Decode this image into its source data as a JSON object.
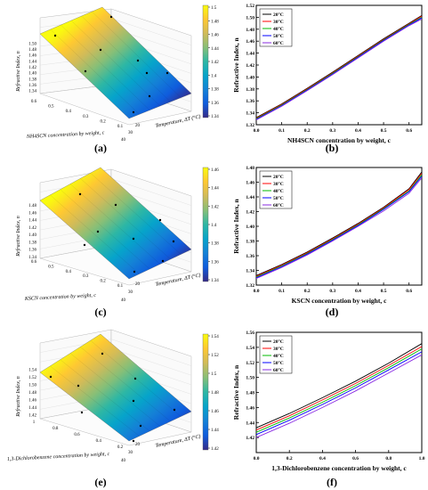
{
  "colors": {
    "series": [
      "#000000",
      "#ff0000",
      "#00bb00",
      "#0000ff",
      "#8a2be2"
    ],
    "colormap": [
      "#352a87",
      "#0f5cdd",
      "#1481d6",
      "#06a4ca",
      "#2eb7a4",
      "#87bf77",
      "#d1bb59",
      "#fec832",
      "#f9fb0e"
    ]
  },
  "chart_data": [
    {
      "panel": "(a)",
      "type": "surface3d",
      "xlabel": "NH4SCN concentration by weight, c",
      "ylabel": "Temperature, ΔT (°C)",
      "zlabel": "Refractive Index, n",
      "x_ticks": [
        "0.6",
        "0.5",
        "0.4",
        "0.3",
        "0.2",
        "0.1"
      ],
      "y_ticks": [
        "20",
        "30",
        "40"
      ],
      "z_ticks": [
        "1.34",
        "1.36",
        "1.38",
        "1.40",
        "1.42",
        "1.44",
        "1.46",
        "1.48",
        "1.50"
      ],
      "colorbar_ticks": [
        "1.5",
        "1.48",
        "1.46",
        "1.44",
        "1.42",
        "1.4",
        "1.38",
        "1.36",
        "1.34"
      ],
      "zlim": [
        1.33,
        1.51
      ]
    },
    {
      "panel": "(b)",
      "type": "line",
      "xlabel": "NH4SCN concentration by weight, c",
      "ylabel": "Refractive Index, n",
      "xlim": [
        0.0,
        0.65
      ],
      "ylim": [
        1.32,
        1.52
      ],
      "x_ticks": [
        "0.0",
        "0.1",
        "0.2",
        "0.3",
        "0.4",
        "0.5",
        "0.6"
      ],
      "y_ticks": [
        "1.32",
        "1.34",
        "1.36",
        "1.38",
        "1.40",
        "1.42",
        "1.44",
        "1.46",
        "1.48",
        "1.50",
        "1.52"
      ],
      "legend_position": "top-left",
      "x": [
        0.0,
        0.1,
        0.2,
        0.3,
        0.4,
        0.5,
        0.6,
        0.65
      ],
      "series": [
        {
          "name": "20°C",
          "values": [
            1.332,
            1.355,
            1.381,
            1.408,
            1.436,
            1.464,
            1.49,
            1.503
          ]
        },
        {
          "name": "30°C",
          "values": [
            1.331,
            1.354,
            1.38,
            1.407,
            1.435,
            1.463,
            1.489,
            1.502
          ]
        },
        {
          "name": "40°C",
          "values": [
            1.33,
            1.353,
            1.379,
            1.406,
            1.434,
            1.462,
            1.488,
            1.5
          ]
        },
        {
          "name": "50°C",
          "values": [
            1.329,
            1.352,
            1.378,
            1.405,
            1.433,
            1.461,
            1.487,
            1.499
          ]
        },
        {
          "name": "60°C",
          "values": [
            1.328,
            1.351,
            1.377,
            1.404,
            1.432,
            1.46,
            1.486,
            1.497
          ]
        }
      ]
    },
    {
      "panel": "(c)",
      "type": "surface3d",
      "xlabel": "KSCN concentration by weight, c",
      "ylabel": "Temperature, ΔT (°C)",
      "zlabel": "Refractive Index, n",
      "x_ticks": [
        "0.6",
        "0.5",
        "0.4",
        "0.3",
        "0.2",
        "0.1"
      ],
      "y_ticks": [
        "20",
        "30",
        "40"
      ],
      "z_ticks": [
        "1.34",
        "1.36",
        "1.38",
        "1.40",
        "1.42",
        "1.44",
        "1.46",
        "1.48"
      ],
      "colorbar_ticks": [
        "1.46",
        "1.44",
        "1.42",
        "1.4",
        "1.38",
        "1.36",
        "1.34"
      ],
      "zlim": [
        1.33,
        1.48
      ]
    },
    {
      "panel": "(d)",
      "type": "line",
      "xlabel": "KSCN concentration by weight, c",
      "ylabel": "Refractive Index, n",
      "xlim": [
        0.0,
        0.65
      ],
      "ylim": [
        1.32,
        1.48
      ],
      "x_ticks": [
        "0.0",
        "0.1",
        "0.2",
        "0.3",
        "0.4",
        "0.5",
        "0.6"
      ],
      "y_ticks": [
        "1.32",
        "1.34",
        "1.36",
        "1.38",
        "1.40",
        "1.42",
        "1.44",
        "1.46",
        "1.48"
      ],
      "legend_position": "top-left",
      "x": [
        0.0,
        0.1,
        0.2,
        0.3,
        0.4,
        0.5,
        0.6,
        0.65
      ],
      "series": [
        {
          "name": "20°C",
          "values": [
            1.333,
            1.348,
            1.365,
            1.384,
            1.404,
            1.426,
            1.451,
            1.474
          ]
        },
        {
          "name": "30°C",
          "values": [
            1.332,
            1.347,
            1.364,
            1.383,
            1.403,
            1.425,
            1.45,
            1.472
          ]
        },
        {
          "name": "40°C",
          "values": [
            1.331,
            1.346,
            1.363,
            1.382,
            1.402,
            1.424,
            1.448,
            1.47
          ]
        },
        {
          "name": "50°C",
          "values": [
            1.33,
            1.345,
            1.362,
            1.381,
            1.401,
            1.423,
            1.447,
            1.468
          ]
        },
        {
          "name": "60°C",
          "values": [
            1.329,
            1.344,
            1.361,
            1.38,
            1.4,
            1.421,
            1.445,
            1.466
          ]
        }
      ]
    },
    {
      "panel": "(e)",
      "type": "surface3d",
      "xlabel": "1,3-Dichlorobenzene concentration by weight, c",
      "ylabel": "Temperature, ΔT (°C)",
      "zlabel": "Refractive Index, n",
      "x_ticks": [
        "1",
        "0.8",
        "0.6",
        "0.4",
        "0.2"
      ],
      "y_ticks": [
        "20",
        "30",
        "40"
      ],
      "z_ticks": [
        "1.42",
        "1.44",
        "1.46",
        "1.48",
        "1.50",
        "1.52",
        "1.54"
      ],
      "colorbar_ticks": [
        "1.54",
        "1.52",
        "1.5",
        "1.48",
        "1.46",
        "1.44",
        "1.42"
      ],
      "zlim": [
        1.41,
        1.55
      ]
    },
    {
      "panel": "(f)",
      "type": "line",
      "xlabel": "1,3-Dichlorobenzene concentration by weight, c",
      "ylabel": "Refractive Index, n",
      "xlim": [
        0.0,
        1.0
      ],
      "ylim": [
        1.4,
        1.56
      ],
      "x_ticks": [
        "0.0",
        "0.2",
        "0.4",
        "0.6",
        "0.8",
        "1.0"
      ],
      "y_ticks": [
        "1.42",
        "1.44",
        "1.46",
        "1.48",
        "1.50",
        "1.52",
        "1.54",
        "1.56"
      ],
      "legend_position": "top-left",
      "x": [
        0.0,
        0.2,
        0.4,
        0.6,
        0.8,
        1.0
      ],
      "series": [
        {
          "name": "20°C",
          "values": [
            1.433,
            1.452,
            1.473,
            1.495,
            1.519,
            1.545
          ]
        },
        {
          "name": "30°C",
          "values": [
            1.43,
            1.449,
            1.47,
            1.492,
            1.516,
            1.541
          ]
        },
        {
          "name": "40°C",
          "values": [
            1.427,
            1.446,
            1.467,
            1.489,
            1.513,
            1.538
          ]
        },
        {
          "name": "50°C",
          "values": [
            1.424,
            1.443,
            1.464,
            1.486,
            1.51,
            1.534
          ]
        },
        {
          "name": "60°C",
          "values": [
            1.42,
            1.439,
            1.46,
            1.482,
            1.506,
            1.53
          ]
        }
      ]
    }
  ]
}
